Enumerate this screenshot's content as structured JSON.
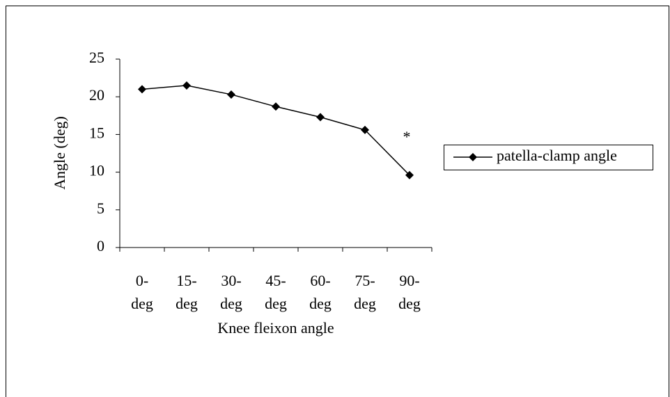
{
  "chart_data": {
    "type": "line",
    "x_label": "Knee fleixon angle",
    "y_label": "Angle (deg)",
    "categories": [
      "0-deg",
      "15-deg",
      "30-deg",
      "45-deg",
      "60-deg",
      "75-deg",
      "90-deg"
    ],
    "series": [
      {
        "name": "patella-clamp angle",
        "color": "#000000",
        "values": [
          21,
          21.5,
          20.3,
          18.7,
          17.3,
          15.6,
          9.6
        ]
      }
    ],
    "ylim": [
      0,
      25
    ],
    "yticks": [
      0,
      5,
      10,
      15,
      20,
      25
    ],
    "grid": false,
    "legend": "right",
    "annotations": [
      {
        "text": "*",
        "category": 6,
        "y": 14.5
      }
    ]
  }
}
